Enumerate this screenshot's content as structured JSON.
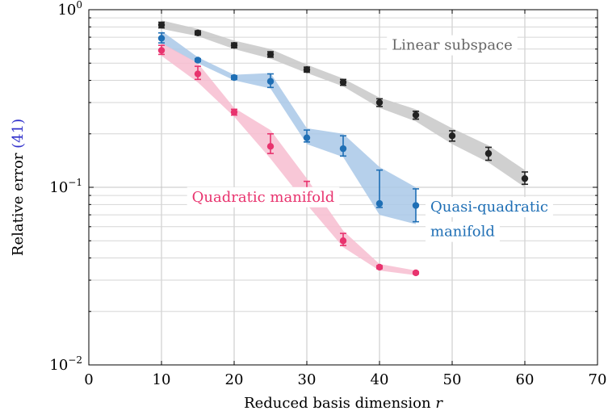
{
  "chart_data": {
    "type": "line",
    "xlabel": "Reduced basis dimension",
    "xlabel_var": "r",
    "ylabel": "Relative error",
    "ylabel_ref": "(41)",
    "ylabel_ref_color": "#3333cc",
    "xlim": [
      0,
      70
    ],
    "ylim": [
      0.01,
      1
    ],
    "yscale": "log",
    "grid": true,
    "x_ticks": [
      0,
      10,
      20,
      30,
      40,
      50,
      60,
      70
    ],
    "y_ticks": [
      {
        "value": 0.01,
        "base": "10",
        "exp": "−2"
      },
      {
        "value": 0.1,
        "base": "10",
        "exp": "−1"
      },
      {
        "value": 1,
        "base": "10",
        "exp": "0"
      }
    ],
    "series": [
      {
        "name": "Linear subspace",
        "color": "#222222",
        "band_color": "#c8c8c8",
        "label_color": "#666666",
        "x": [
          10,
          15,
          20,
          25,
          30,
          35,
          40,
          45,
          50,
          55,
          60
        ],
        "y": [
          0.82,
          0.74,
          0.63,
          0.56,
          0.46,
          0.39,
          0.3,
          0.255,
          0.195,
          0.155,
          0.112
        ],
        "err_low": [
          0.79,
          0.72,
          0.61,
          0.54,
          0.445,
          0.375,
          0.285,
          0.242,
          0.182,
          0.142,
          0.104
        ],
        "err_high": [
          0.85,
          0.76,
          0.65,
          0.58,
          0.475,
          0.405,
          0.315,
          0.268,
          0.208,
          0.168,
          0.122
        ],
        "band_low": [
          0.78,
          0.71,
          0.6,
          0.53,
          0.44,
          0.37,
          0.28,
          0.235,
          0.175,
          0.138,
          0.1
        ],
        "band_high": [
          0.87,
          0.78,
          0.67,
          0.6,
          0.49,
          0.41,
          0.32,
          0.275,
          0.215,
          0.172,
          0.125
        ]
      },
      {
        "name": "Quasi-quadratic manifold",
        "color": "#1f6fb5",
        "band_color": "#a9c8e8",
        "label_color": "#1f6fb5",
        "x": [
          10,
          15,
          20,
          25,
          30,
          35,
          40,
          45
        ],
        "y": [
          0.69,
          0.52,
          0.415,
          0.395,
          0.19,
          0.165,
          0.081,
          0.079
        ],
        "err_low": [
          0.65,
          0.51,
          0.405,
          0.365,
          0.18,
          0.15,
          0.077,
          0.064
        ],
        "err_high": [
          0.74,
          0.53,
          0.425,
          0.435,
          0.21,
          0.195,
          0.125,
          0.098
        ],
        "band_low": [
          0.64,
          0.5,
          0.4,
          0.36,
          0.175,
          0.148,
          0.07,
          0.062
        ],
        "band_high": [
          0.76,
          0.54,
          0.43,
          0.44,
          0.215,
          0.2,
          0.13,
          0.1
        ]
      },
      {
        "name": "Quadratic manifold",
        "color": "#e8336e",
        "band_color": "#f7bdd0",
        "label_color": "#e8336e",
        "x": [
          10,
          15,
          20,
          25,
          30,
          35,
          40,
          45
        ],
        "y": [
          0.59,
          0.435,
          0.265,
          0.17,
          0.093,
          0.05,
          0.0355,
          0.033
        ],
        "err_low": [
          0.56,
          0.405,
          0.255,
          0.155,
          0.085,
          0.047,
          0.0348,
          0.0325
        ],
        "err_high": [
          0.63,
          0.48,
          0.275,
          0.2,
          0.108,
          0.055,
          0.0362,
          0.0335
        ],
        "band_low": [
          0.55,
          0.39,
          0.25,
          0.145,
          0.08,
          0.046,
          0.034,
          0.032
        ],
        "band_high": [
          0.65,
          0.5,
          0.28,
          0.21,
          0.112,
          0.057,
          0.037,
          0.034
        ]
      }
    ],
    "annotations": [
      {
        "text": "Linear subspace",
        "series": 0,
        "x": 50,
        "y": 0.595,
        "anchor": "middle"
      },
      {
        "text": "Quadratic manifold",
        "series": 2,
        "x": 24,
        "y": 0.083,
        "anchor": "middle"
      },
      {
        "text": "Quasi-quadratic",
        "series": 1,
        "x": 47,
        "y": 0.073,
        "anchor": "start"
      },
      {
        "text": "manifold",
        "series": 1,
        "x": 47,
        "y": 0.053,
        "anchor": "start"
      }
    ]
  }
}
